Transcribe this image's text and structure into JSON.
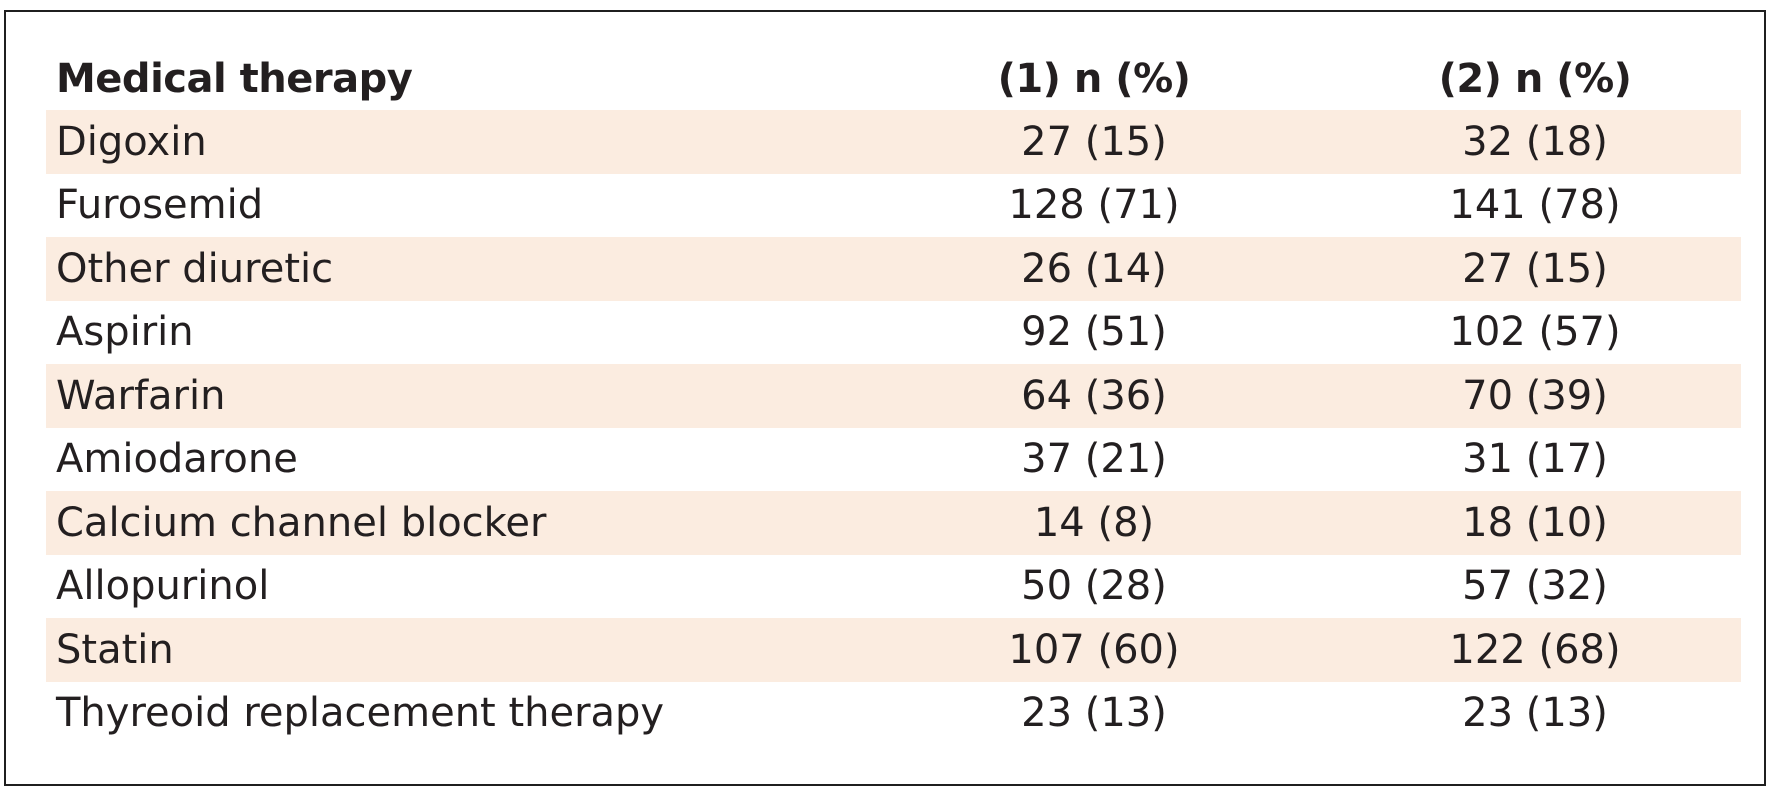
{
  "table": {
    "headers": {
      "label": "Medical therapy",
      "col1": "(1) n (%)",
      "col2": "(2) n (%)"
    },
    "rows": [
      {
        "label": "Digoxin",
        "col1": "27 (15)",
        "col2": "32 (18)",
        "shaded": true
      },
      {
        "label": "Furosemid",
        "col1": "128 (71)",
        "col2": "141 (78)",
        "shaded": false
      },
      {
        "label": "Other diuretic",
        "col1": "26 (14)",
        "col2": "27 (15)",
        "shaded": true
      },
      {
        "label": "Aspirin",
        "col1": "92 (51)",
        "col2": "102 (57)",
        "shaded": false
      },
      {
        "label": "Warfarin",
        "col1": "64 (36)",
        "col2": "70 (39)",
        "shaded": true
      },
      {
        "label": "Amiodarone",
        "col1": "37 (21)",
        "col2": "31 (17)",
        "shaded": false
      },
      {
        "label": "Calcium channel blocker",
        "col1": "14 (8)",
        "col2": "18 (10)",
        "shaded": true
      },
      {
        "label": "Allopurinol",
        "col1": "50 (28)",
        "col2": "57 (32)",
        "shaded": false
      },
      {
        "label": "Statin",
        "col1": "107 (60)",
        "col2": "122 (68)",
        "shaded": true
      },
      {
        "label": "Thyreoid replacement therapy",
        "col1": "23 (13)",
        "col2": "23 (13)",
        "shaded": false
      }
    ]
  },
  "colors": {
    "shade": "#fbece0",
    "text": "#231f20",
    "border": "#1f1f1f"
  }
}
